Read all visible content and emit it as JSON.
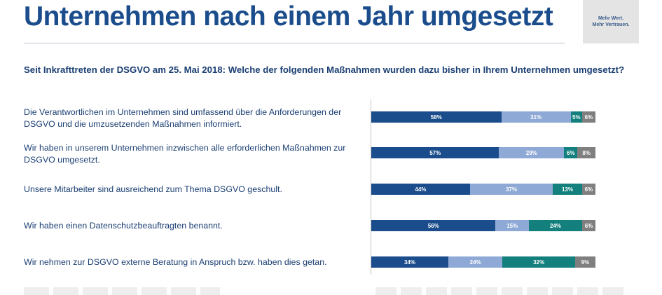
{
  "title": "Unternehmen nach einem Jahr umgesetzt",
  "logo": {
    "text": "Mehr Wert.\nMehr Vertrauen."
  },
  "question": "Seit Inkrafttreten der DSGVO am 25. Mai 2018: Welche der folgenden Maßnahmen wurden dazu bisher in Ihrem Unternehmen umgesetzt?",
  "colors": {
    "series1": "#1b4d8c",
    "series2": "#8fa9d6",
    "series3": "#13807d",
    "series4": "#7f7f7f"
  },
  "chart_data": {
    "type": "bar",
    "orientation": "horizontal",
    "stacked": true,
    "unit": "%",
    "categories": [
      "Die Verantwortlichen im Unternehmen sind umfassend über die Anforderungen der DSGVO und die umzusetzenden Maßnahmen informiert.",
      "Wir haben in unserem Unternehmen inzwischen alle erforderlichen Maßnahmen zur DSGVO umgesetzt.",
      "Unsere Mitarbeiter sind ausreichend zum Thema DSGVO geschult.",
      "Wir haben einen Datenschutzbeauftragten benannt.",
      "Wir nehmen zur DSGVO externe Beratung in Anspruch bzw. haben dies getan."
    ],
    "series": [
      {
        "values": [
          58,
          57,
          44,
          56,
          34
        ]
      },
      {
        "values": [
          31,
          29,
          37,
          15,
          24
        ]
      },
      {
        "values": [
          5,
          6,
          13,
          24,
          32
        ]
      },
      {
        "values": [
          6,
          8,
          6,
          6,
          9
        ]
      }
    ],
    "data_labels": [
      [
        "58%",
        "31%",
        "5%",
        "6%"
      ],
      [
        "57%",
        "29%",
        "6%",
        "8%"
      ],
      [
        "44%",
        "37%",
        "13%",
        "6%"
      ],
      [
        "56%",
        "15%",
        "24%",
        "6%"
      ],
      [
        "34%",
        "24%",
        "32%",
        "9%"
      ]
    ],
    "xlim": [
      0,
      100
    ],
    "grid": false,
    "legend": "none"
  }
}
